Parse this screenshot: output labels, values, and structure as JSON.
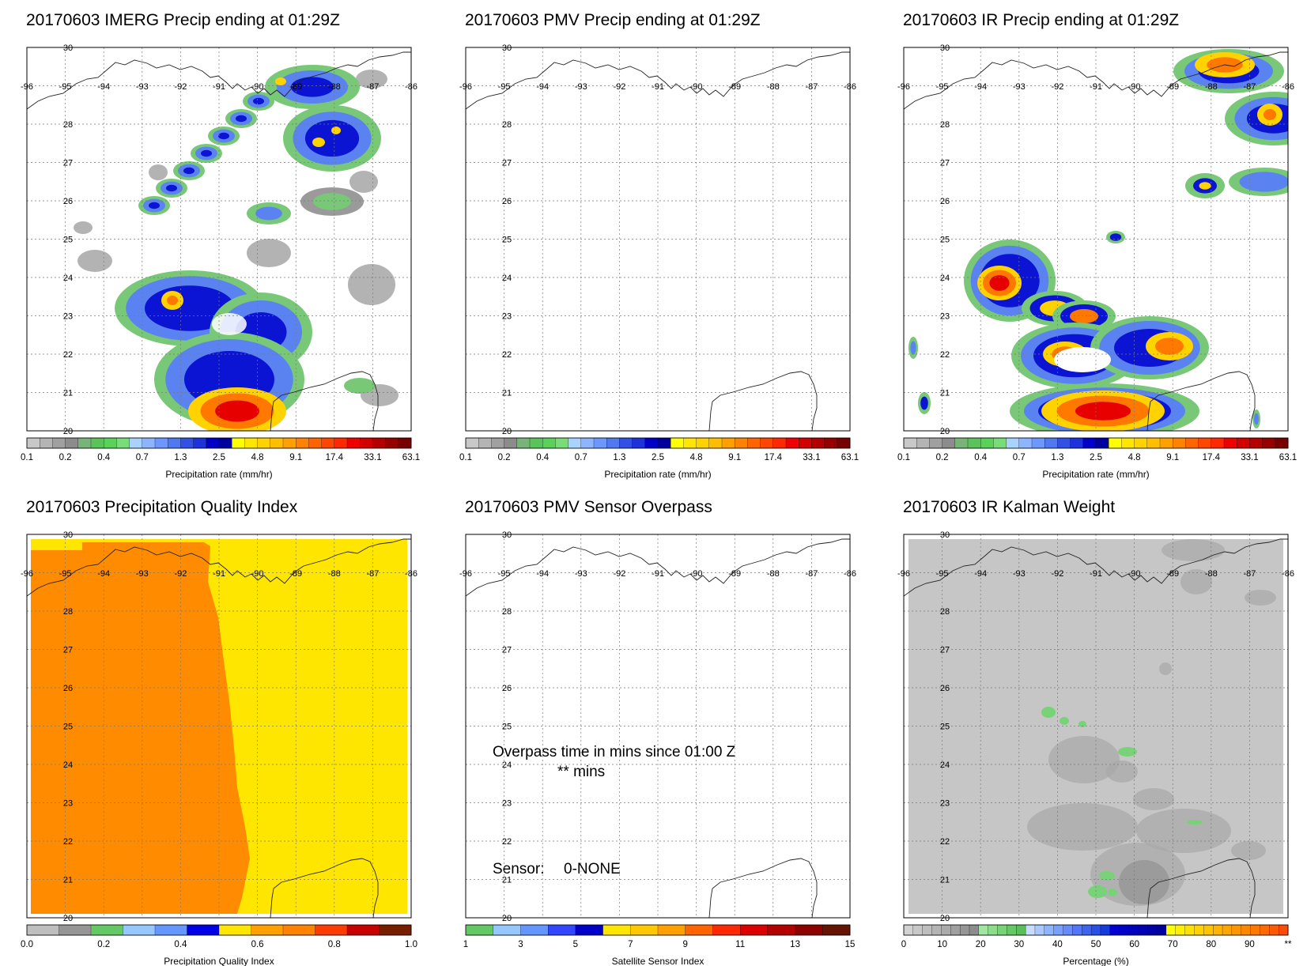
{
  "panels": [
    {
      "title": "20170603 IMERG Precip ending at 01:29Z",
      "colorbar_label": "Precipitation rate (mm/hr)",
      "colorbar": "precip",
      "field": "imerg"
    },
    {
      "title": "20170603 PMV Precip ending at 01:29Z",
      "colorbar_label": "Precipitation rate (mm/hr)",
      "colorbar": "precip",
      "field": "none"
    },
    {
      "title": "20170603 IR Precip ending at 01:29Z",
      "colorbar_label": "Precipitation rate (mm/hr)",
      "colorbar": "precip",
      "field": "ir"
    },
    {
      "title": "20170603 Precipitation Quality Index",
      "colorbar_label": "Precipitation Quality Index",
      "colorbar": "quality",
      "field": "quality"
    },
    {
      "title": "20170603 PMV Sensor Overpass",
      "colorbar_label": "Satellite Sensor Index",
      "colorbar": "sensor",
      "field": "overpass",
      "annotation": {
        "line1": "Overpass time in mins since 01:00 Z",
        "line2": "** mins",
        "sensor_label": "Sensor:",
        "sensor_value": "0-NONE"
      }
    },
    {
      "title": "20170603 IR Kalman Weight",
      "colorbar_label": "Percentage (%)",
      "colorbar": "percent",
      "field": "kalman"
    }
  ],
  "map": {
    "lon_labels": [
      "-96",
      "-95",
      "-94",
      "-93",
      "-92",
      "-91",
      "-90",
      "-89",
      "-88",
      "-87",
      "-86"
    ],
    "lat_labels": [
      "20",
      "21",
      "22",
      "23",
      "24",
      "25",
      "26",
      "27",
      "28",
      "30"
    ],
    "lon_range": [
      -96,
      -86
    ],
    "lat_range": [
      20,
      30
    ]
  },
  "colorbars": {
    "precip": {
      "colors": [
        "#c8c8c8",
        "#b4b4b4",
        "#a0a0a0",
        "#8c8c8c",
        "#78b478",
        "#5ac35a",
        "#5ad25a",
        "#78dc78",
        "#aad2ff",
        "#8cb4ff",
        "#6e96ff",
        "#5078f0",
        "#3250e6",
        "#1e32dc",
        "#0000c8",
        "#0000a0",
        "#ffff00",
        "#ffe600",
        "#ffd200",
        "#ffbe00",
        "#ffa000",
        "#ff8200",
        "#ff6400",
        "#ff4600",
        "#ff2800",
        "#f00000",
        "#d20000",
        "#b40000",
        "#960000",
        "#780000"
      ],
      "tick_labels": [
        "0.1",
        "0.2",
        "0.4",
        "0.7",
        "1.3",
        "2.5",
        "4.8",
        "9.1",
        "17.4",
        "33.1",
        "63.1"
      ]
    },
    "quality": {
      "colors": [
        "#bebebe",
        "#969696",
        "#64c864",
        "#96c8ff",
        "#6496ff",
        "#0000e6",
        "#ffe600",
        "#ffa000",
        "#ff8200",
        "#ff3c00",
        "#c80000",
        "#781e00"
      ],
      "tick_labels": [
        "0.0",
        "0.2",
        "0.4",
        "0.6",
        "0.8",
        "1.0"
      ]
    },
    "sensor": {
      "colors": [
        "#64c864",
        "#96c8ff",
        "#6496ff",
        "#3246ff",
        "#0000c8",
        "#ffe600",
        "#ffc800",
        "#ffa000",
        "#ff6400",
        "#ff2800",
        "#dc0000",
        "#b40000",
        "#8c0000",
        "#641400"
      ],
      "tick_labels": [
        "1",
        "3",
        "5",
        "7",
        "9",
        "11",
        "13",
        "15"
      ]
    },
    "percent": {
      "colors": [
        "#d2d2d2",
        "#c8c8c8",
        "#bebebe",
        "#b4b4b4",
        "#aaaaaa",
        "#a0a0a0",
        "#969696",
        "#8c8c8c",
        "#a0e6a0",
        "#8cdc8c",
        "#78d278",
        "#64c864",
        "#5abe5a",
        "#c8dcff",
        "#aac8ff",
        "#8cb4ff",
        "#78a0ff",
        "#648cff",
        "#5078ff",
        "#3c64f0",
        "#2850e6",
        "#143cdc",
        "#0000d2",
        "#0000c8",
        "#0000be",
        "#0000b4",
        "#0000aa",
        "#0000a0",
        "#ffff00",
        "#fff000",
        "#ffe100",
        "#ffd200",
        "#ffc300",
        "#ffb400",
        "#ffa500",
        "#ff9600",
        "#ff8700",
        "#ff7800",
        "#ff6900",
        "#ff5a00",
        "#ff4b00"
      ],
      "tick_labels": [
        "0",
        "10",
        "20",
        "30",
        "40",
        "50",
        "60",
        "70",
        "80",
        "90",
        "**"
      ]
    }
  }
}
